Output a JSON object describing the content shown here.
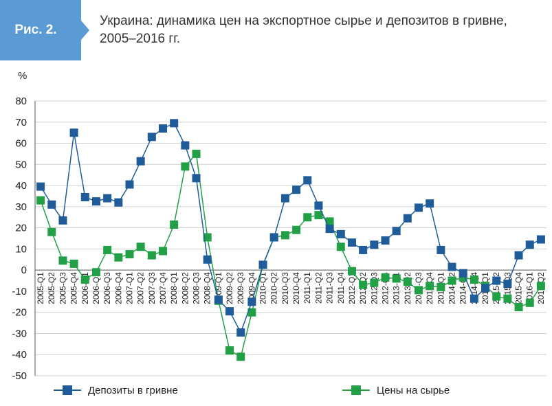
{
  "figure": {
    "badge": "Рис. 2.",
    "title": "Украина: динамика цен на экспортное сырье и депозитов в гривне, 2005–2016 гг."
  },
  "colors": {
    "badge": "#5b9bd5",
    "deposits": "#1f5c99",
    "commodities": "#22a046",
    "grid": "#d0d0d0"
  },
  "chart_data": {
    "type": "line",
    "ylabel": "%",
    "ylim": [
      -50,
      80
    ],
    "yticks": [
      80,
      70,
      60,
      50,
      40,
      30,
      20,
      10,
      0,
      -10,
      -20,
      -30,
      -40,
      -50
    ],
    "x": [
      "2005-Q1",
      "2005-Q2",
      "2005-Q3",
      "2005-Q4",
      "2006-Q1",
      "2006-Q2",
      "2006-Q3",
      "2006-Q4",
      "2007-Q1",
      "2007-Q2",
      "2007-Q3",
      "2007-Q4",
      "2008-Q1",
      "2008-Q2",
      "2008-Q3",
      "2008-Q4",
      "2009-Q1",
      "2009-Q2",
      "2009-Q3",
      "2009-Q4",
      "2010-Q1",
      "2010-Q2",
      "2010-Q3",
      "2010-Q4",
      "2011-Q1",
      "2011-Q2",
      "2011-Q3",
      "2011-Q4",
      "2012-Q1",
      "2012-Q2",
      "2012-Q3",
      "2012-Q4",
      "2013-Q1",
      "2013-Q2",
      "2013-Q3",
      "2013-Q4",
      "2014-Q1",
      "2014-Q2",
      "2014-Q3",
      "2014-Q4",
      "2015-Q1",
      "2015-Q2",
      "2015-Q3",
      "2015-Q4",
      "2016-Q1",
      "2016-Q2"
    ],
    "series": [
      {
        "name": "Депозиты в гривне",
        "values": [
          39.5,
          31,
          23.5,
          65,
          34.5,
          32.5,
          34,
          32,
          40.5,
          51.5,
          63,
          67,
          69.5,
          59,
          43.5,
          5,
          -14,
          -19.5,
          -29.5,
          -15,
          2.5,
          15.5,
          34,
          38,
          42.5,
          30.5,
          19.5,
          17,
          13,
          9.5,
          12,
          14,
          18.5,
          24.5,
          29.5,
          31.5,
          9.5,
          1.5,
          -1.5,
          -13.5,
          -8.5,
          -5,
          -6.5,
          7,
          12,
          14.5
        ]
      },
      {
        "name": "Цены на сырье",
        "values": [
          33,
          18,
          4.5,
          3,
          -4.5,
          -1,
          9.5,
          6,
          7.5,
          11,
          7,
          9,
          21.5,
          49,
          55,
          15.5,
          -14.5,
          -38,
          -41,
          -20,
          2.5,
          15.5,
          16.5,
          19,
          25,
          26,
          23,
          11,
          -0.5,
          -7,
          -6,
          -3.5,
          -4,
          -5.5,
          -9.5,
          -7.5,
          -8,
          -5,
          -3.5,
          -4.5,
          -7.5,
          -12.5,
          -13.5,
          -17.5,
          -15.5,
          -7.5
        ]
      }
    ],
    "grid": true,
    "legend": "bottom"
  }
}
